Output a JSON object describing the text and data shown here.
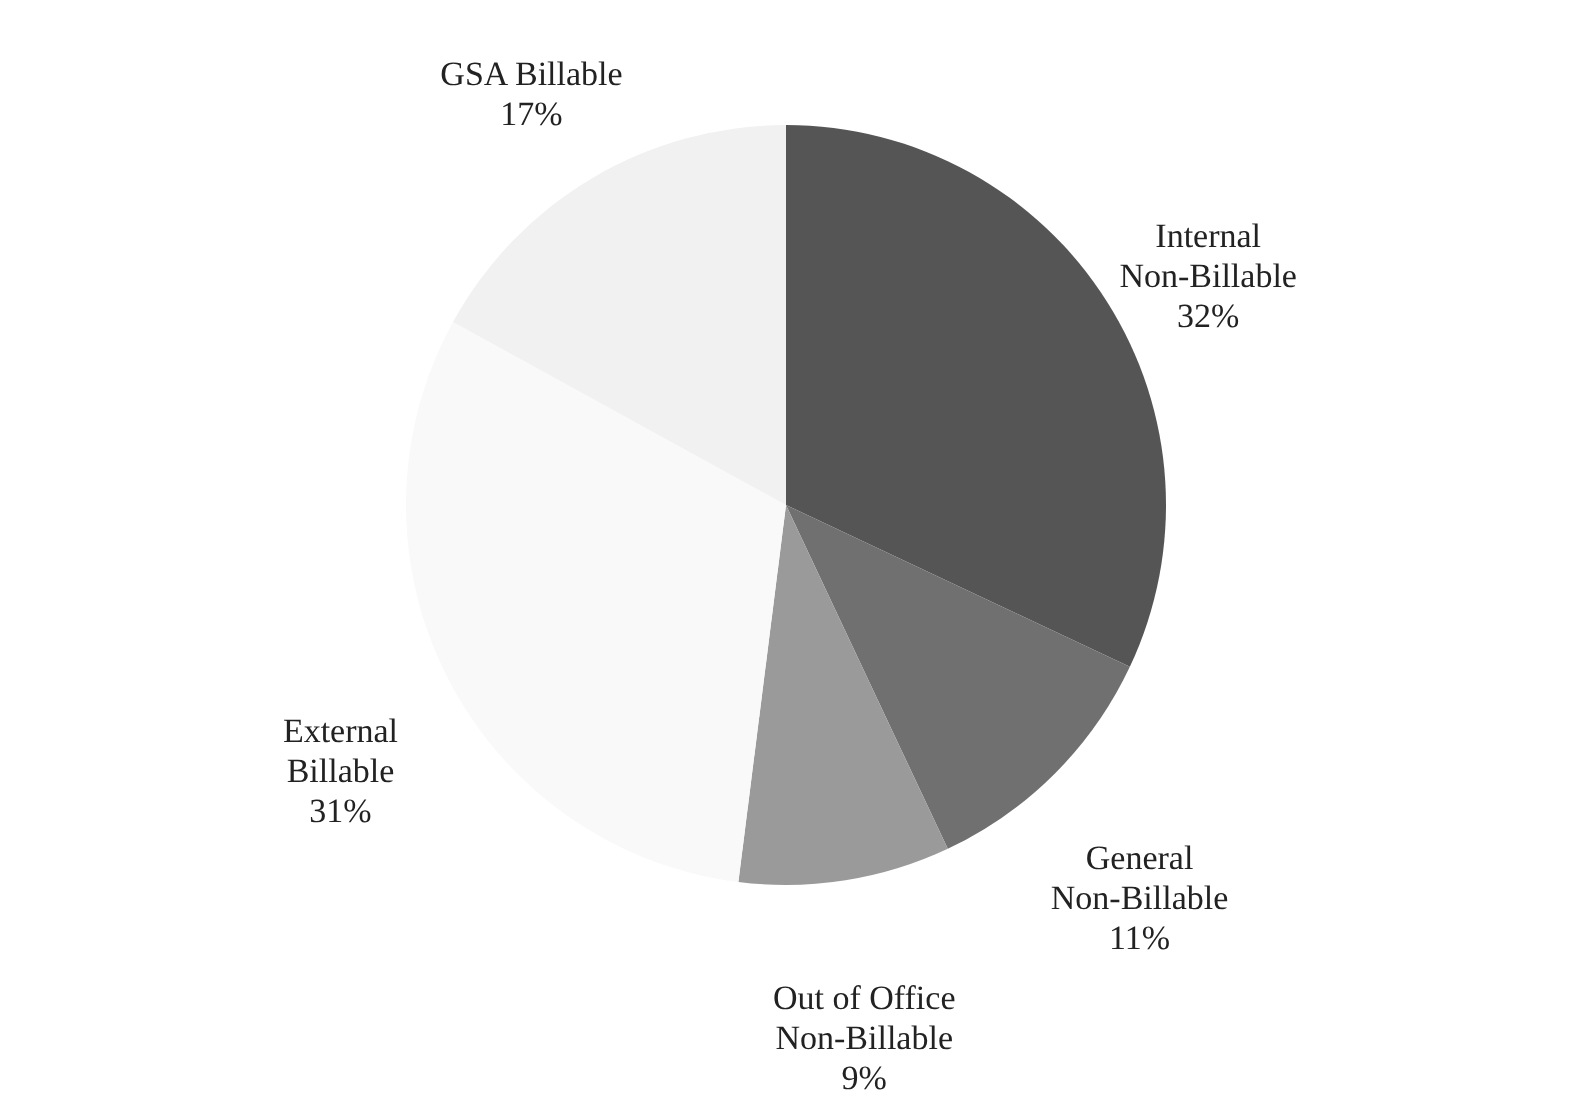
{
  "chart_data": {
    "type": "pie",
    "categories": [
      "Internal Non-Billable",
      "General Non-Billable",
      "Out of Office Non-Billable",
      "External Billable",
      "GSA Billable"
    ],
    "values": [
      32,
      11,
      9,
      31,
      17
    ],
    "value_labels": [
      "32%",
      "11%",
      "9%",
      "31%",
      "17%"
    ],
    "colors": [
      "#555555",
      "#707070",
      "#9a9a9a",
      "#f9f9f9",
      "#f1f1f1"
    ]
  }
}
